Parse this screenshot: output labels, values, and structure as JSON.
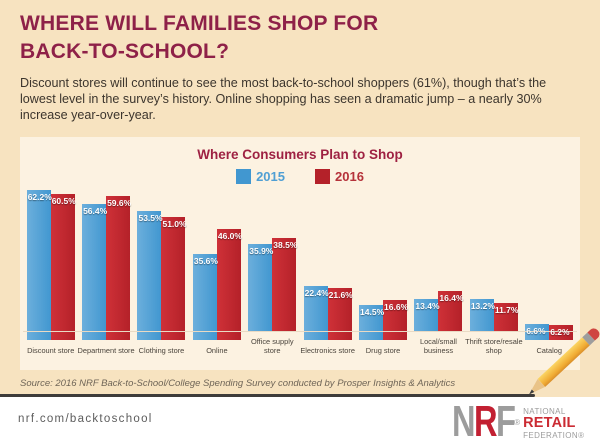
{
  "page": {
    "title_line1": "WHERE WILL FAMILIES SHOP FOR",
    "title_line2": "BACK-TO-SCHOOL?",
    "intro": "Discount stores will continue to see the most back-to-school shoppers (61%), though that’s the lowest level in the survey’s history. Online shopping has seen a dramatic jump – a nearly 30% increase year-over-year.",
    "source": "Source: 2016 NRF Back-to-School/College Spending Survey conducted by Prosper Insights & Analytics",
    "footer_url": "nrf.com/backtoschool"
  },
  "logo": {
    "n": "N",
    "r": "R",
    "f": "F",
    "registered": "®",
    "national": "NATIONAL",
    "retail": "RETAIL",
    "federation": "FEDERATION",
    "federation_reg": "®"
  },
  "colors": {
    "background_tan": "#f7e3c0",
    "panel_cream": "#fcf2e1",
    "title_maroon": "#8e2148",
    "chart_title_red": "#9e2142",
    "footer_white": "#ffffff",
    "pencil_yellow": "#f0ab33",
    "line_dark": "#3e3c3a"
  },
  "chart_data": {
    "type": "bar",
    "title": "Where Consumers Plan to Shop",
    "categories": [
      "Discount store",
      "Department store",
      "Clothing store",
      "Online",
      "Office supply store",
      "Electronics store",
      "Drug store",
      "Local/small business",
      "Thrift store/resale shop",
      "Catalog"
    ],
    "series": [
      {
        "name": "2015",
        "color": "#4197d0",
        "color_light": "#6cafdc",
        "values": [
          62.2,
          56.4,
          53.5,
          35.6,
          35.9,
          22.4,
          14.5,
          13.4,
          13.2,
          6.6
        ]
      },
      {
        "name": "2016",
        "color": "#b42129",
        "color_light": "#cf3138",
        "values": [
          60.5,
          59.6,
          51.0,
          46.0,
          38.5,
          21.6,
          16.6,
          16.4,
          11.7,
          6.2
        ]
      }
    ],
    "value_suffix": "%",
    "value_decimals": 1,
    "xlabel": "",
    "ylabel": "",
    "ylim": [
      0,
      65
    ],
    "grid": false,
    "legend_position": "top",
    "data_labels": "inside-top"
  }
}
